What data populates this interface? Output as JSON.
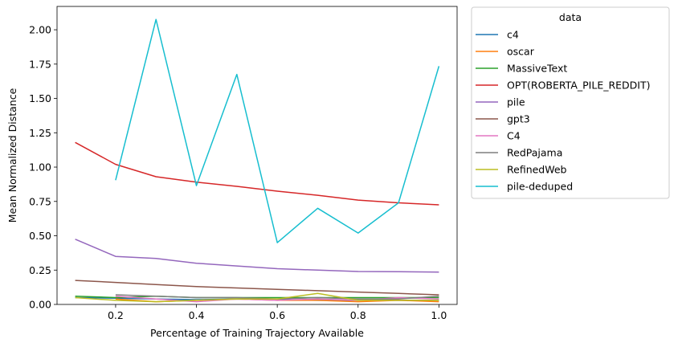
{
  "chart_data": {
    "type": "line",
    "xlabel": "Percentage of Training Trajectory Available",
    "ylabel": "Mean Normalized Distance",
    "xlim": [
      0.055,
      1.045
    ],
    "ylim": [
      0.0,
      2.17
    ],
    "xticks": [
      0.2,
      0.4,
      0.6,
      0.8,
      1.0
    ],
    "xtick_labels": [
      "0.2",
      "0.4",
      "0.6",
      "0.8",
      "1.0"
    ],
    "yticks": [
      0.0,
      0.25,
      0.5,
      0.75,
      1.0,
      1.25,
      1.5,
      1.75,
      2.0
    ],
    "ytick_labels": [
      "0.00",
      "0.25",
      "0.50",
      "0.75",
      "1.00",
      "1.25",
      "1.50",
      "1.75",
      "2.00"
    ],
    "grid": false,
    "legend": {
      "title": "data",
      "placement": "outside-right-top"
    },
    "series": [
      {
        "name": "c4",
        "color": "#1f77b4",
        "x": [
          0.1,
          0.2,
          0.3,
          0.4,
          0.5,
          0.6,
          0.7,
          0.8,
          0.9,
          1.0
        ],
        "y": [
          0.05,
          0.045,
          0.04,
          0.035,
          0.04,
          0.035,
          0.03,
          0.03,
          0.03,
          0.03
        ]
      },
      {
        "name": "oscar",
        "color": "#ff7f0e",
        "x": [
          0.2,
          0.3,
          0.4,
          0.5,
          0.6,
          0.7,
          0.8,
          0.9,
          1.0
        ],
        "y": [
          0.04,
          0.02,
          0.03,
          0.04,
          0.03,
          0.03,
          0.02,
          0.03,
          0.02
        ]
      },
      {
        "name": "MassiveText",
        "color": "#2ca02c",
        "x": [
          0.1,
          0.2,
          0.3,
          0.4,
          0.5,
          0.6,
          0.7,
          0.8,
          0.9,
          1.0
        ],
        "y": [
          0.06,
          0.05,
          0.06,
          0.05,
          0.05,
          0.05,
          0.05,
          0.05,
          0.05,
          0.05
        ]
      },
      {
        "name": "OPT(ROBERTA_PILE_REDDIT)",
        "color": "#d62728",
        "x": [
          0.1,
          0.2,
          0.3,
          0.4,
          0.5,
          0.6,
          0.7,
          0.8,
          0.9,
          1.0
        ],
        "y": [
          1.18,
          1.02,
          0.93,
          0.89,
          0.86,
          0.825,
          0.795,
          0.76,
          0.74,
          0.725
        ]
      },
      {
        "name": "pile",
        "color": "#9467bd",
        "x": [
          0.1,
          0.2,
          0.3,
          0.4,
          0.5,
          0.6,
          0.7,
          0.8,
          0.9,
          1.0
        ],
        "y": [
          0.475,
          0.35,
          0.335,
          0.3,
          0.28,
          0.26,
          0.25,
          0.24,
          0.238,
          0.235
        ]
      },
      {
        "name": "gpt3",
        "color": "#8c564b",
        "x": [
          0.1,
          0.2,
          0.3,
          0.4,
          0.5,
          0.6,
          0.7,
          0.8,
          0.9,
          1.0
        ],
        "y": [
          0.175,
          0.16,
          0.145,
          0.13,
          0.12,
          0.11,
          0.1,
          0.09,
          0.08,
          0.07
        ]
      },
      {
        "name": "C4",
        "color": "#e377c2",
        "x": [
          0.2,
          0.3,
          0.4,
          0.5,
          0.6,
          0.7,
          0.8,
          0.9,
          1.0
        ],
        "y": [
          0.06,
          0.04,
          0.02,
          0.04,
          0.03,
          0.04,
          0.03,
          0.05,
          0.04
        ]
      },
      {
        "name": "RedPajama",
        "color": "#7f7f7f",
        "x": [
          0.2,
          0.3,
          0.4,
          0.5,
          0.6,
          0.7,
          0.8,
          0.9,
          1.0
        ],
        "y": [
          0.07,
          0.06,
          0.05,
          0.05,
          0.04,
          0.05,
          0.04,
          0.04,
          0.06
        ]
      },
      {
        "name": "RefinedWeb",
        "color": "#bcbd22",
        "x": [
          0.1,
          0.2,
          0.3,
          0.4,
          0.5,
          0.6,
          0.7,
          0.8,
          0.9,
          1.0
        ],
        "y": [
          0.05,
          0.03,
          0.02,
          0.03,
          0.04,
          0.04,
          0.08,
          0.03,
          0.03,
          0.03
        ]
      },
      {
        "name": "pile-deduped",
        "color": "#17becf",
        "x": [
          0.2,
          0.3,
          0.4,
          0.5,
          0.6,
          0.7,
          0.8,
          0.9,
          1.0
        ],
        "y": [
          0.905,
          2.075,
          0.865,
          1.675,
          0.45,
          0.7,
          0.52,
          0.74,
          1.735
        ]
      }
    ]
  }
}
